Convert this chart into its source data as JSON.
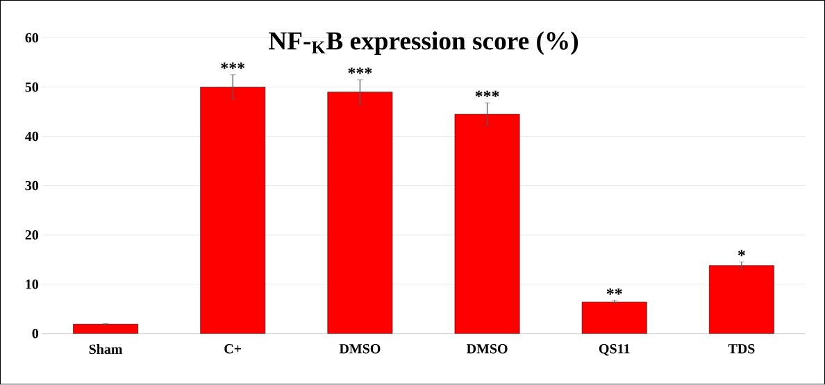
{
  "chart_data": {
    "type": "bar",
    "title": "NF-$_{K}$B expression score (%)",
    "categories": [
      "Sham",
      "C+",
      "DMSO",
      "DMSO",
      "QS11",
      "TDS"
    ],
    "values": [
      1.9,
      50,
      49,
      44.5,
      6.4,
      13.8
    ],
    "errors": [
      0.1,
      2.5,
      2.5,
      2.3,
      0.3,
      0.7
    ],
    "color": "#ff0000",
    "ylim": [
      0,
      60
    ],
    "yticks": [
      0,
      10,
      20,
      30,
      40,
      50,
      60
    ],
    "grid": "y",
    "annotations": [
      "***",
      "***",
      "***",
      "**",
      "*"
    ]
  }
}
